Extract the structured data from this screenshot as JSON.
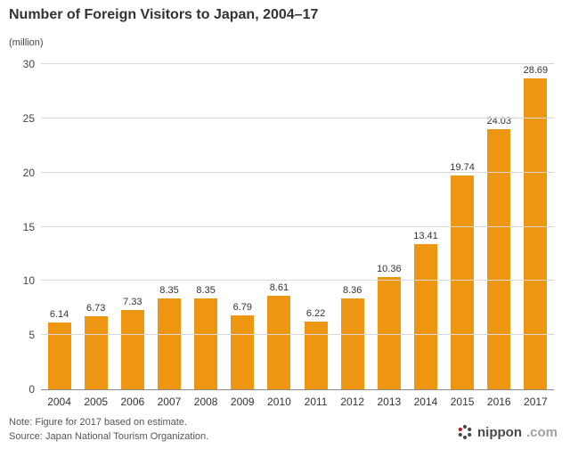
{
  "title": "Number of Foreign Visitors to Japan, 2004–17",
  "unit_label": "(million)",
  "colors": {
    "bar": "#ee9611",
    "gridline": "#d9d9d9",
    "axis": "#8c8c8c",
    "logo_accent": "#c8151e"
  },
  "chart_data": {
    "type": "bar",
    "title": "Number of Foreign Visitors to Japan, 2004–17",
    "categories": [
      "2004",
      "2005",
      "2006",
      "2007",
      "2008",
      "2009",
      "2010",
      "2011",
      "2012",
      "2013",
      "2014",
      "2015",
      "2016",
      "2017"
    ],
    "values": [
      6.14,
      6.73,
      7.33,
      8.35,
      8.35,
      6.79,
      8.61,
      6.22,
      8.36,
      10.36,
      13.41,
      19.74,
      24.03,
      28.69
    ],
    "value_labels": [
      "6.14",
      "6.73",
      "7.33",
      "8.35",
      "8.35",
      "6.79",
      "8.61",
      "6.22",
      "8.36",
      "10.36",
      "13.41",
      "19.74",
      "24.03",
      "28.69"
    ],
    "xlabel": "",
    "ylabel": "(million)",
    "ylim": [
      0,
      30
    ],
    "yticks": [
      0,
      5,
      10,
      15,
      20,
      25,
      30
    ],
    "grid": "horizontal",
    "legend": "none"
  },
  "footer": {
    "note_line1": "Note: Figure for 2017 based on estimate.",
    "note_line2": "Source: Japan National Tourism Organization.",
    "logo_name": "nippon",
    "logo_tld": ".com"
  }
}
